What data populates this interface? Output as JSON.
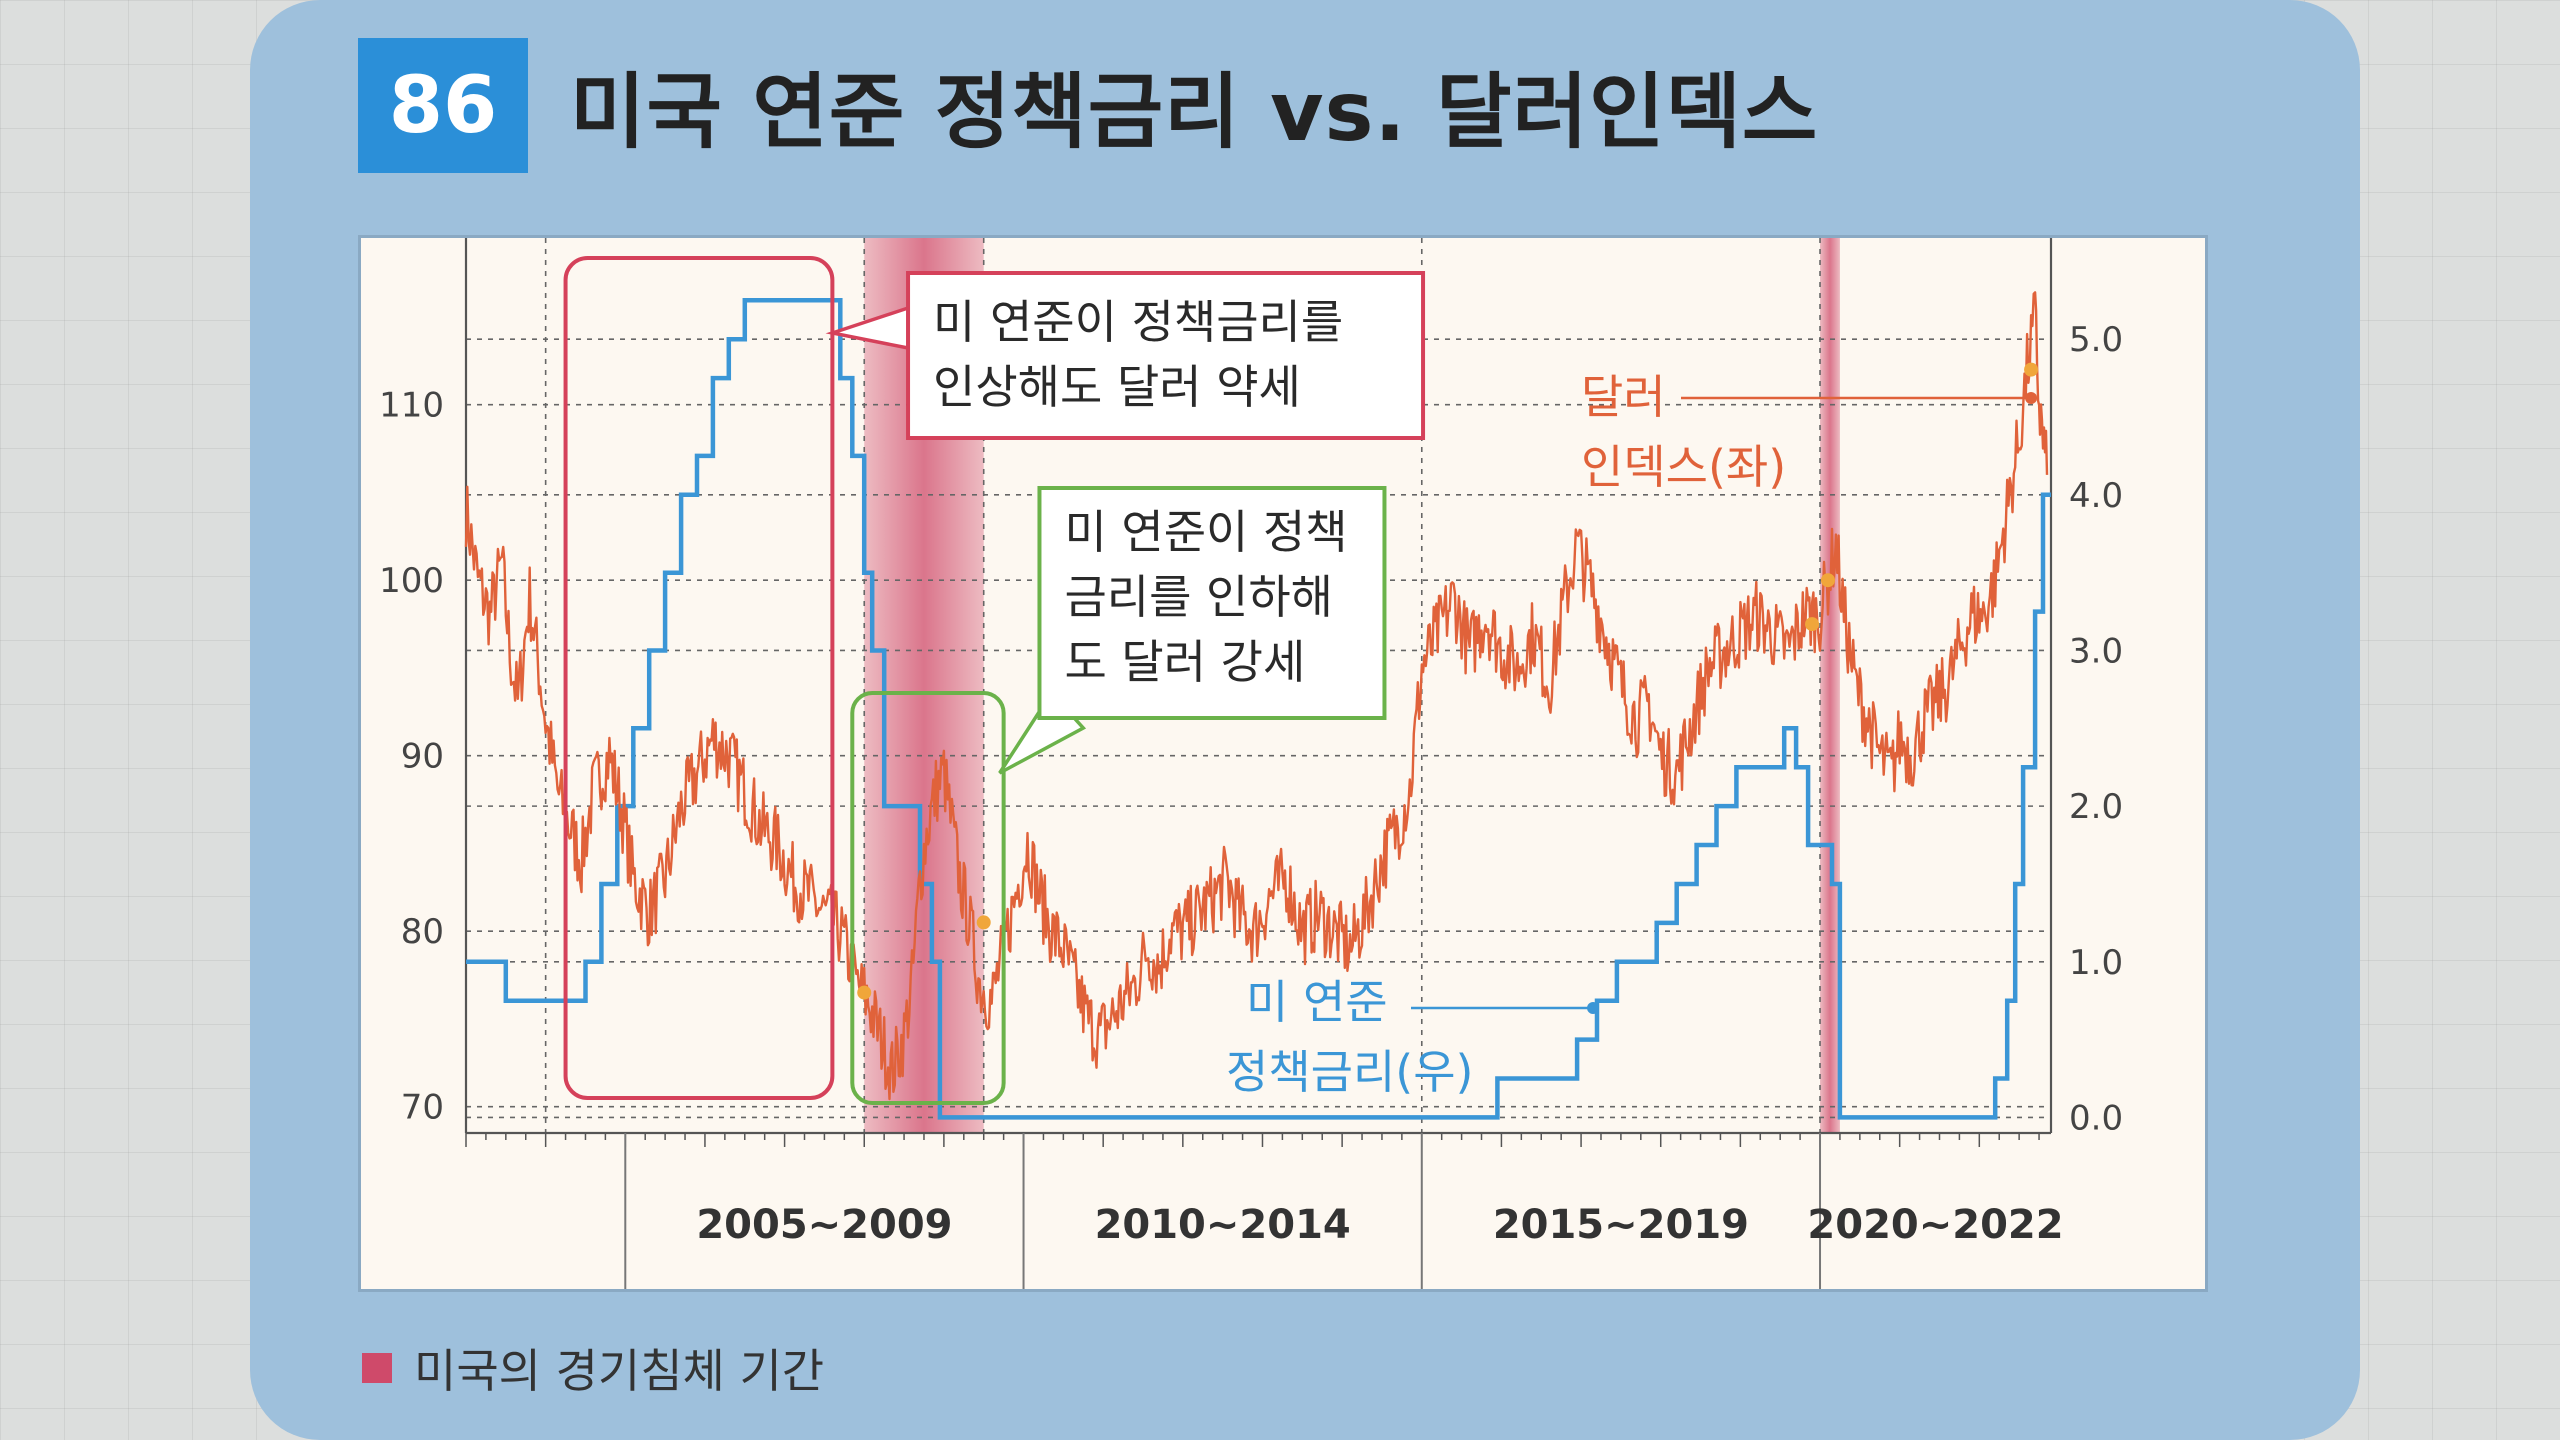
{
  "figure": {
    "number": "86",
    "title": "미국 연준 정책금리 vs. 달러인덱스",
    "legend": "미국의 경기침체 기간"
  },
  "colors": {
    "dxy": "#e0623a",
    "fed": "#3b96d6",
    "recession": "#cf4a6a",
    "red_box": "#d5415a",
    "green_box": "#6bb24a",
    "dot": "#f0a63a"
  },
  "chart_data": {
    "type": "line",
    "period_labels": [
      "2005~2009",
      "2010~2014",
      "2015~2019",
      "2020~2022"
    ],
    "y_left": {
      "ticks": [
        70,
        80,
        90,
        100,
        110
      ],
      "range": [
        68.5,
        119.5
      ]
    },
    "y_right": {
      "ticks": [
        "0.0",
        "1.0",
        "2.0",
        "3.0",
        "4.0",
        "5.0"
      ],
      "range": [
        -0.1,
        5.65
      ]
    },
    "x_range": [
      2003.0,
      2022.9
    ],
    "recessions": [
      [
        2008.0,
        2009.5
      ],
      [
        2020.0,
        2020.25
      ]
    ],
    "series": [
      {
        "name": "달러 인덱스(좌)",
        "axis": "left",
        "x": [
          2003.0,
          2003.15,
          2003.3,
          2003.45,
          2003.55,
          2003.65,
          2003.8,
          2004.0,
          2004.15,
          2004.3,
          2004.45,
          2004.6,
          2004.8,
          2004.95,
          2005.1,
          2005.3,
          2005.5,
          2005.7,
          2005.9,
          2006.1,
          2006.3,
          2006.5,
          2006.7,
          2006.9,
          2007.1,
          2007.3,
          2007.5,
          2007.7,
          2007.9,
          2008.05,
          2008.2,
          2008.35,
          2008.5,
          2008.6,
          2008.7,
          2008.8,
          2008.9,
          2009.0,
          2009.1,
          2009.2,
          2009.3,
          2009.45,
          2009.6,
          2009.75,
          2009.9,
          2010.05,
          2010.2,
          2010.35,
          2010.5,
          2010.65,
          2010.8,
          2010.95,
          2011.1,
          2011.25,
          2011.4,
          2011.55,
          2011.7,
          2011.85,
          2012.0,
          2012.2,
          2012.4,
          2012.55,
          2012.7,
          2012.9,
          2013.1,
          2013.3,
          2013.5,
          2013.7,
          2013.9,
          2014.1,
          2014.3,
          2014.5,
          2014.7,
          2014.85,
          2015.0,
          2015.2,
          2015.4,
          2015.6,
          2015.8,
          2016.0,
          2016.2,
          2016.4,
          2016.6,
          2016.8,
          2016.95,
          2017.1,
          2017.3,
          2017.5,
          2017.7,
          2017.85,
          2018.0,
          2018.2,
          2018.4,
          2018.6,
          2018.8,
          2019.0,
          2019.2,
          2019.4,
          2019.6,
          2019.8,
          2020.0,
          2020.1,
          2020.2,
          2020.3,
          2020.45,
          2020.6,
          2020.75,
          2020.9,
          2021.0,
          2021.15,
          2021.3,
          2021.45,
          2021.6,
          2021.75,
          2021.9,
          2022.05,
          2022.2,
          2022.35,
          2022.5,
          2022.6,
          2022.7,
          2022.75,
          2022.8,
          2022.85
        ],
        "y": [
          104,
          100,
          98,
          101,
          96,
          93,
          99,
          92,
          88,
          86,
          84,
          88,
          90,
          87,
          83,
          81,
          83,
          87,
          89,
          91,
          90,
          88,
          86,
          85,
          83,
          82,
          81,
          80,
          77,
          76,
          74,
          72,
          74,
          77,
          83,
          86,
          88,
          89,
          86,
          83,
          81,
          77,
          76,
          79,
          82,
          85,
          82,
          80,
          79,
          77,
          75,
          74,
          75,
          76,
          77,
          79,
          78,
          80,
          80,
          81,
          82,
          83,
          81,
          80,
          82,
          83,
          80,
          81,
          80,
          79,
          81,
          84,
          86,
          88,
          95,
          97,
          99,
          96,
          98,
          96,
          95,
          97,
          94,
          99,
          102,
          100,
          97,
          94,
          92,
          93,
          90,
          89,
          92,
          95,
          96,
          97,
          98,
          97,
          96,
          98,
          98,
          100,
          102,
          98,
          94,
          92,
          90,
          89,
          91,
          90,
          92,
          93,
          94,
          96,
          98,
          98,
          100,
          104,
          108,
          112,
          115,
          110,
          108,
          106
        ],
        "extra": [
          [
            2003.0,
            104
          ],
          [
            2008.0,
            76.5
          ],
          [
            2009.5,
            80.5
          ],
          [
            2019.9,
            97.5
          ],
          [
            2020.1,
            100
          ],
          [
            2022.65,
            112
          ]
        ]
      },
      {
        "name": "미 연준 정책금리(우)",
        "axis": "right",
        "x": [
          2003.0,
          2003.5,
          2003.5,
          2004.5,
          2004.5,
          2004.7,
          2004.7,
          2004.9,
          2004.9,
          2005.1,
          2005.1,
          2005.3,
          2005.3,
          2005.5,
          2005.5,
          2005.7,
          2005.7,
          2005.9,
          2005.9,
          2006.1,
          2006.1,
          2006.3,
          2006.3,
          2006.5,
          2006.5,
          2007.7,
          2007.7,
          2007.85,
          2007.85,
          2008.0,
          2008.0,
          2008.1,
          2008.1,
          2008.25,
          2008.25,
          2008.7,
          2008.7,
          2008.85,
          2008.85,
          2008.95,
          2008.95,
          2015.95,
          2015.95,
          2016.95,
          2016.95,
          2017.2,
          2017.2,
          2017.45,
          2017.45,
          2017.95,
          2017.95,
          2018.2,
          2018.2,
          2018.45,
          2018.45,
          2018.7,
          2018.7,
          2018.95,
          2018.95,
          2019.55,
          2019.55,
          2019.7,
          2019.7,
          2019.85,
          2019.85,
          2020.15,
          2020.15,
          2020.25,
          2020.25,
          2022.2,
          2022.2,
          2022.35,
          2022.35,
          2022.45,
          2022.45,
          2022.55,
          2022.55,
          2022.7,
          2022.7,
          2022.8,
          2022.8,
          2022.9
        ],
        "y": [
          1.0,
          1.0,
          0.75,
          0.75,
          1.0,
          1.0,
          1.5,
          1.5,
          2.0,
          2.0,
          2.5,
          2.5,
          3.0,
          3.0,
          3.5,
          3.5,
          4.0,
          4.0,
          4.25,
          4.25,
          4.75,
          4.75,
          5.0,
          5.0,
          5.25,
          5.25,
          4.75,
          4.75,
          4.25,
          4.25,
          3.5,
          3.5,
          3.0,
          3.0,
          2.0,
          2.0,
          1.5,
          1.5,
          1.0,
          1.0,
          0.0,
          0.0,
          0.25,
          0.25,
          0.5,
          0.5,
          0.75,
          0.75,
          1.0,
          1.0,
          1.25,
          1.25,
          1.5,
          1.5,
          1.75,
          1.75,
          2.0,
          2.0,
          2.25,
          2.25,
          2.5,
          2.5,
          2.25,
          2.25,
          1.75,
          1.75,
          1.5,
          1.5,
          0.0,
          0.0,
          0.25,
          0.25,
          0.75,
          0.75,
          1.5,
          1.5,
          2.25,
          2.25,
          3.25,
          3.25,
          4.0,
          4.0
        ]
      }
    ],
    "annotations": {
      "red_callout": "미 연준이 정책금리를\n인상해도 달러 약세",
      "green_callout": "미 연준이 정책\n금리를 인하해\n도 달러 강세",
      "dxy_label": "달러\n인덱스(좌)",
      "fed_label": "미 연준\n정책금리(우)"
    },
    "grid": true
  }
}
